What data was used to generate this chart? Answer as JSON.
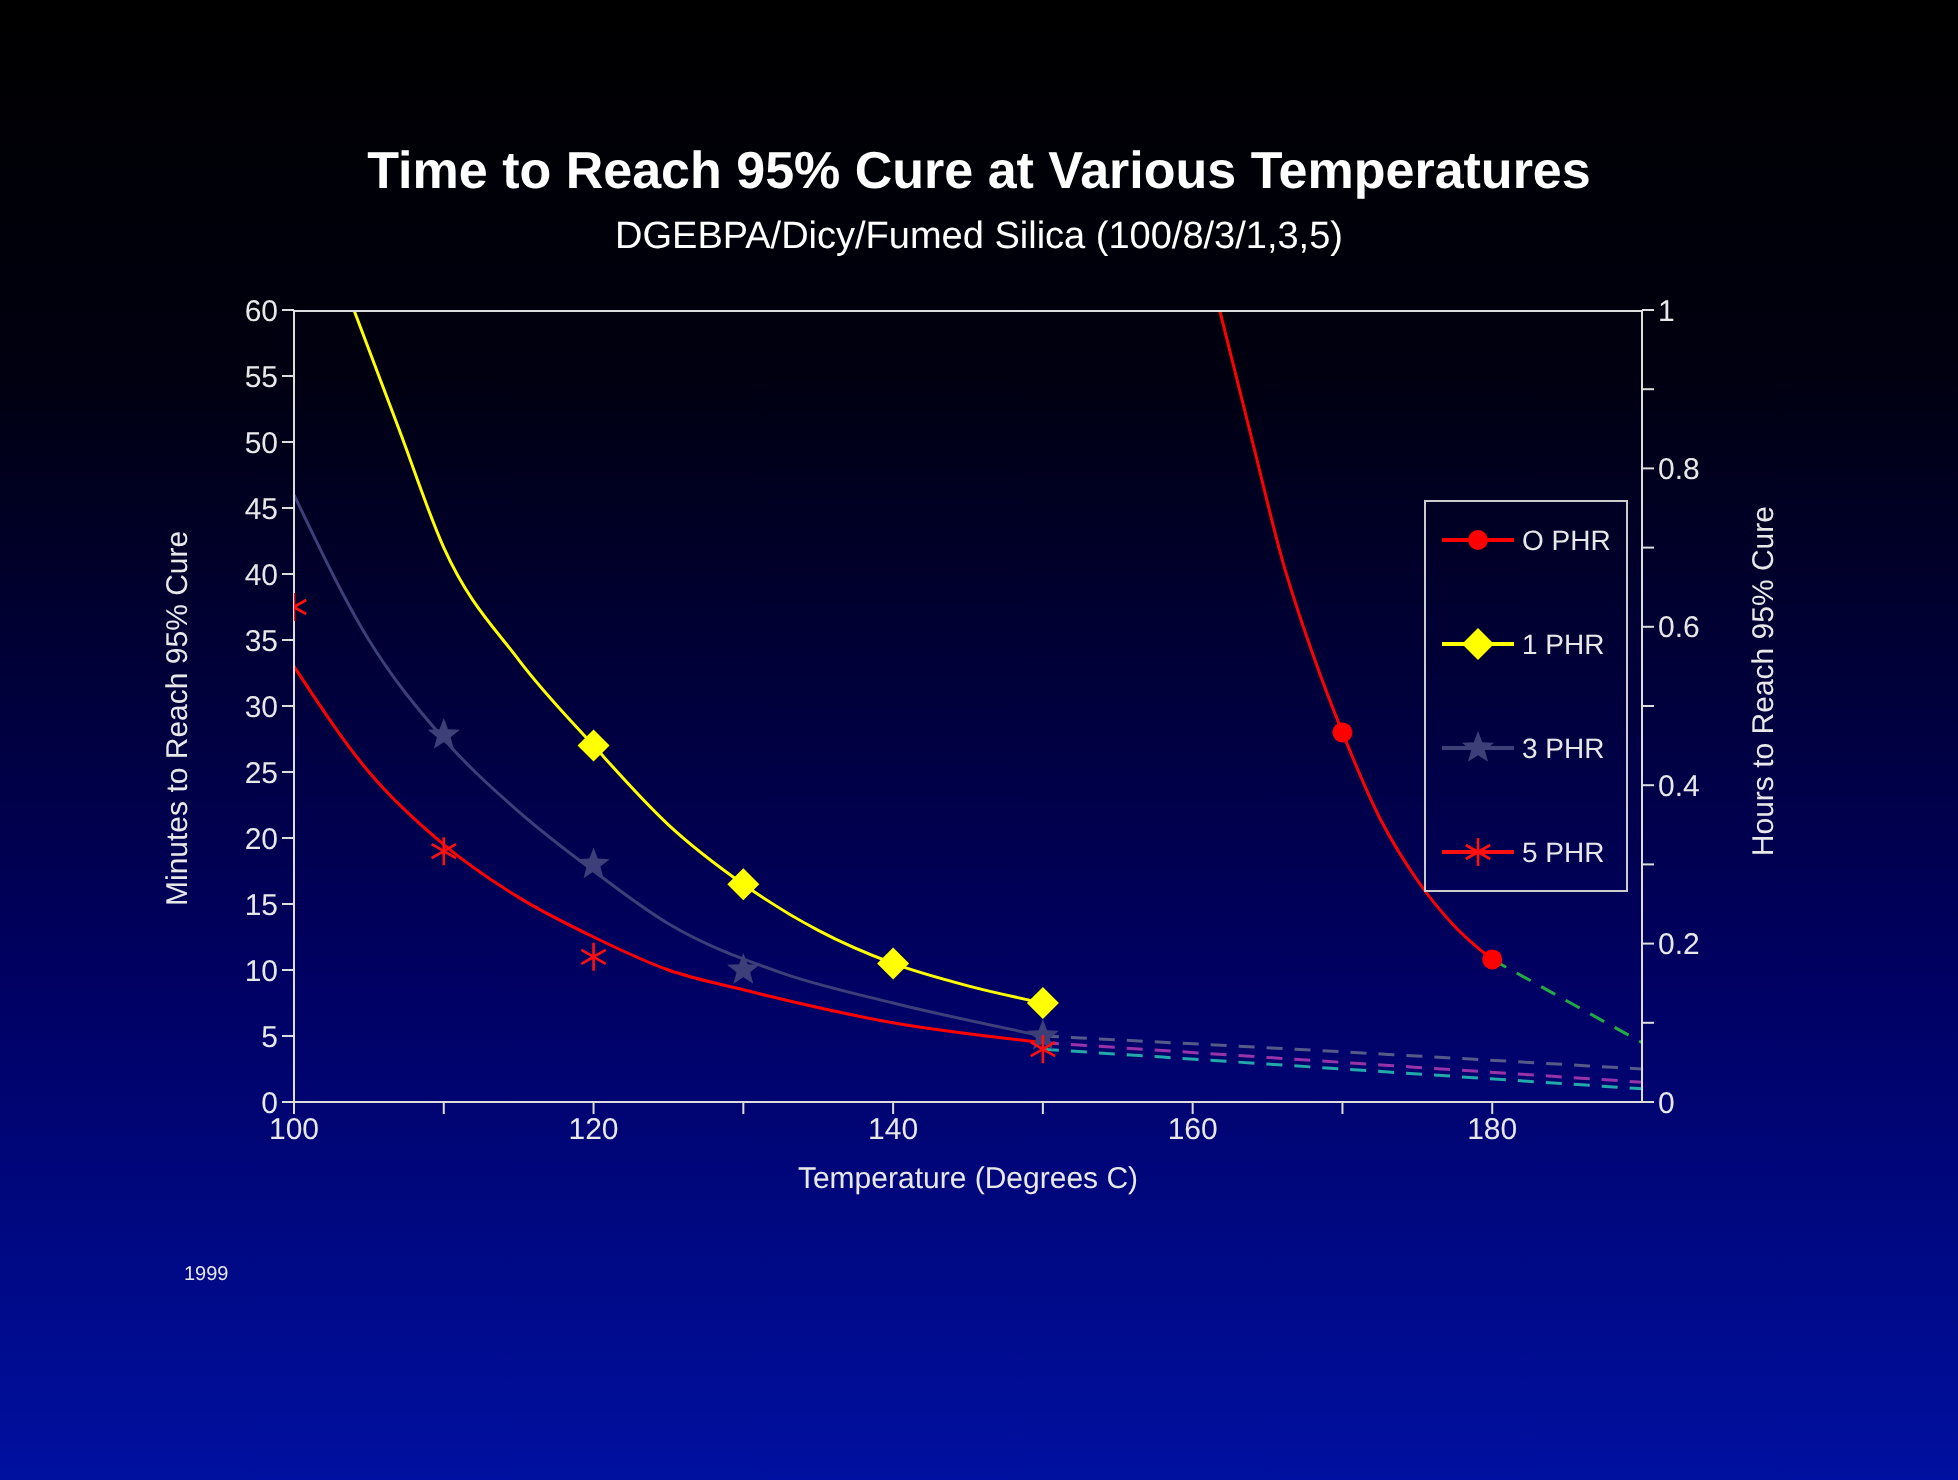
{
  "chart_data": {
    "type": "scatter",
    "title": "Time to Reach 95% Cure at Various Temperatures",
    "subtitle": "DGEBPA/Dicy/Fumed Silica (100/8/3/1,3,5)",
    "xlabel": "Temperature (Degrees C)",
    "ylabel": "Minutes to Reach 95% Cure",
    "y2label": "Hours to Reach 95% Cure",
    "xlim": [
      100,
      190
    ],
    "xticks": [
      100,
      {
        "value": 110,
        "label": null
      },
      120,
      {
        "value": 130,
        "label": null
      },
      140,
      {
        "value": 150,
        "label": null
      },
      160,
      {
        "value": 170,
        "label": null
      },
      180
    ],
    "ylim": [
      0,
      60
    ],
    "yticks": [
      0,
      5,
      10,
      15,
      20,
      25,
      30,
      35,
      40,
      45,
      50,
      55,
      60
    ],
    "y2lim": [
      0,
      1
    ],
    "y2ticks": [
      0,
      {
        "value": 0.1,
        "label": null
      },
      0.2,
      {
        "value": 0.3,
        "label": null
      },
      0.4,
      {
        "value": 0.5,
        "label": null
      },
      0.6,
      {
        "value": 0.7,
        "label": null
      },
      0.8,
      {
        "value": 0.9,
        "label": null
      },
      1
    ],
    "legend": "right",
    "grid": false,
    "series": [
      {
        "name": "O PHR",
        "marker": "circle",
        "color": "#ff0000",
        "x": [
          170,
          180
        ],
        "values": [
          28,
          10.8
        ]
      },
      {
        "name": "1 PHR",
        "marker": "diamond",
        "color": "#ffff00",
        "x": [
          120,
          130,
          140,
          150
        ],
        "values": [
          27,
          16.5,
          10.5,
          7.5
        ]
      },
      {
        "name": "3 PHR",
        "marker": "star",
        "color": "#3c3f78",
        "x": [
          110,
          120,
          130,
          150
        ],
        "values": [
          27.8,
          18,
          10,
          5
        ]
      },
      {
        "name": "5 PHR",
        "marker": "cross",
        "color": "#ff1010",
        "x": [
          100,
          110,
          120,
          150
        ],
        "values": [
          37.5,
          19,
          11,
          4
        ]
      },
      {
        "type": "line",
        "color": "#ff0000",
        "line_style": "solid",
        "x": [
          161.8,
          164,
          166,
          168,
          170,
          172.5,
          175,
          177.5,
          180
        ],
        "values": [
          60,
          50,
          41,
          34,
          28,
          21.5,
          16.8,
          13.3,
          10.8
        ]
      },
      {
        "type": "line",
        "color": "#ffff00",
        "line_style": "solid",
        "x": [
          104,
          107,
          110,
          115,
          120,
          125,
          130,
          135,
          140,
          145,
          150
        ],
        "values": [
          60,
          51,
          42,
          33.5,
          27,
          21,
          16.5,
          13,
          10.5,
          8.8,
          7.5
        ]
      },
      {
        "type": "line",
        "color": "#3c3f78",
        "line_style": "solid",
        "x": [
          100,
          105,
          110,
          115,
          120,
          125,
          132.5,
          140,
          150
        ],
        "values": [
          46,
          35,
          27.5,
          22,
          17.5,
          13.5,
          9.8,
          7.5,
          5
        ]
      },
      {
        "type": "line",
        "color": "#ff0000",
        "line_style": "solid",
        "x": [
          100,
          105,
          110,
          115,
          120,
          125,
          130,
          140,
          150
        ],
        "values": [
          33,
          25,
          19.5,
          15.5,
          12.5,
          10,
          8.5,
          6,
          4.5
        ]
      },
      {
        "type": "line",
        "color": "#22aa44",
        "line_style": "dashed",
        "x": [
          180,
          190
        ],
        "values": [
          10.8,
          4.5
        ]
      },
      {
        "type": "line",
        "color": "#555a88",
        "line_style": "dashed",
        "x": [
          150,
          170,
          190
        ],
        "values": [
          5,
          3.8,
          2.5
        ]
      },
      {
        "type": "line",
        "color": "#9933aa",
        "line_style": "dashed",
        "x": [
          150,
          170,
          190
        ],
        "values": [
          4.5,
          3,
          1.5
        ]
      },
      {
        "type": "line",
        "color": "#22aaaa",
        "line_style": "dashed",
        "x": [
          150,
          170,
          190
        ],
        "values": [
          4,
          2.5,
          1
        ]
      }
    ],
    "annotations": [
      "1999"
    ]
  }
}
